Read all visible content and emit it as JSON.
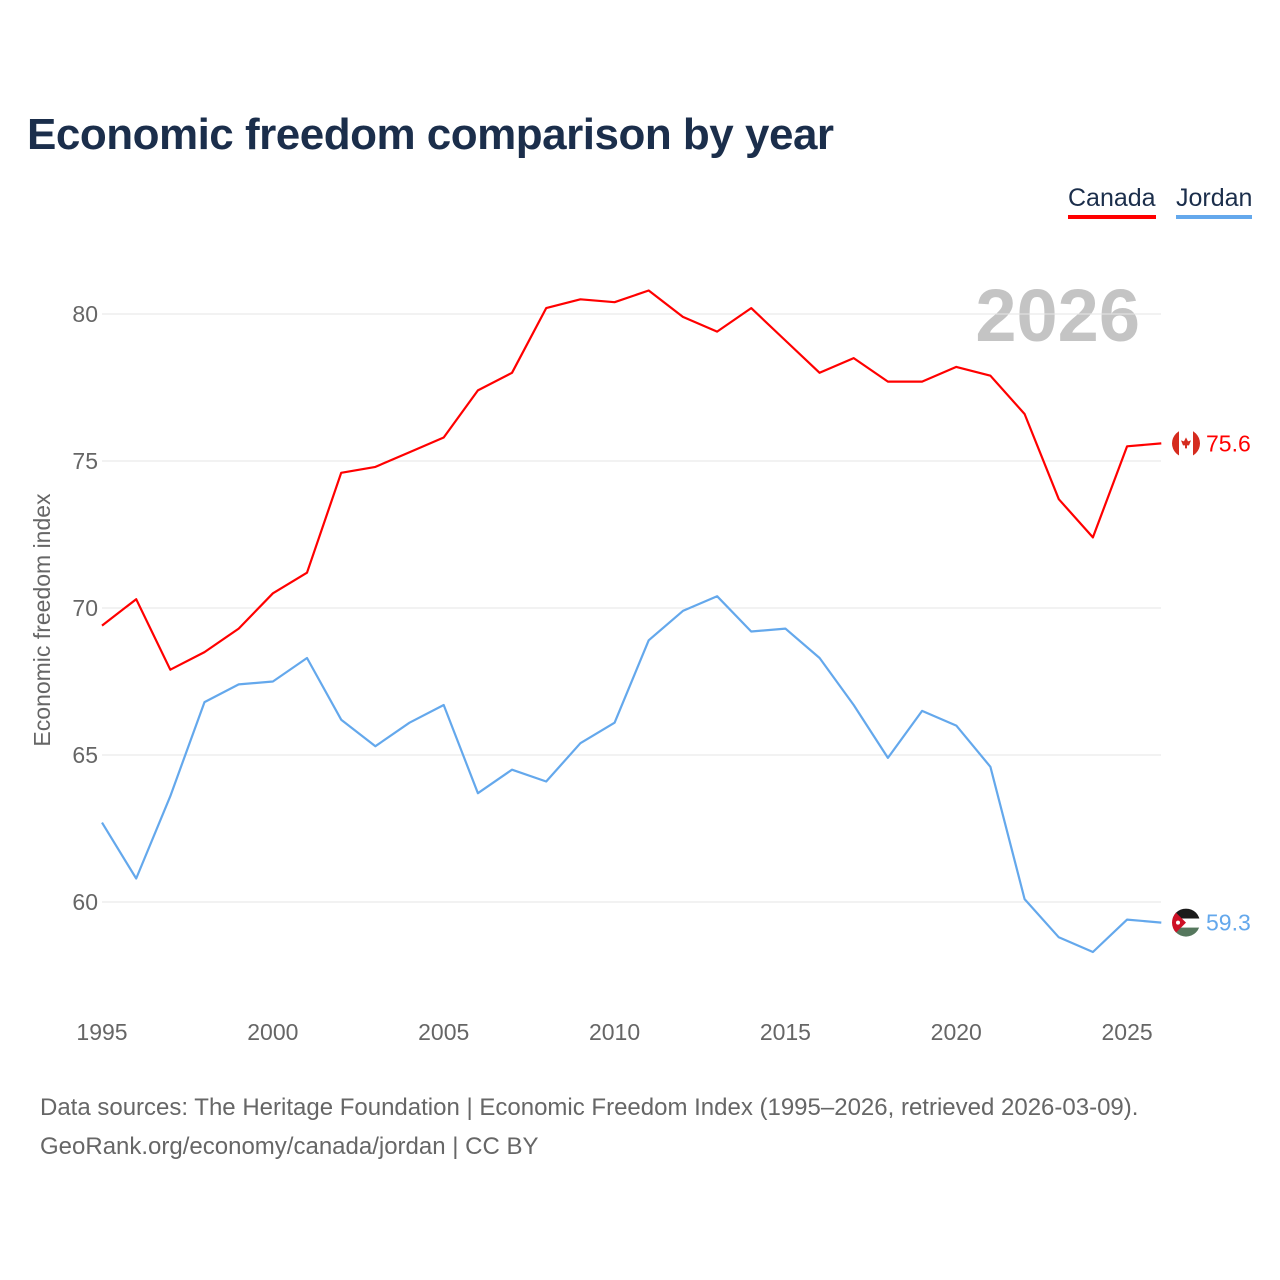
{
  "chart_data": {
    "type": "line",
    "title": "Economic freedom comparison by year",
    "ylabel": "Economic freedom index",
    "xlabel": "",
    "year_watermark": "2026",
    "x": [
      1995,
      1996,
      1997,
      1998,
      1999,
      2000,
      2001,
      2002,
      2003,
      2004,
      2005,
      2006,
      2007,
      2008,
      2009,
      2010,
      2011,
      2012,
      2013,
      2014,
      2015,
      2016,
      2017,
      2018,
      2019,
      2020,
      2021,
      2022,
      2023,
      2024,
      2025,
      2026
    ],
    "xlim": [
      1995,
      2026
    ],
    "ylim": [
      57,
      82.5
    ],
    "xticks": [
      "1995",
      "2000",
      "2005",
      "2010",
      "2015",
      "2020",
      "2025"
    ],
    "yticks": [
      "60",
      "65",
      "70",
      "75",
      "80"
    ],
    "grid": true,
    "legend_placement": "top-right",
    "series": [
      {
        "name": "Canada",
        "color": "#ff0000",
        "end_label": "75.6",
        "values": [
          69.4,
          70.3,
          67.9,
          68.5,
          69.3,
          70.5,
          71.2,
          74.6,
          74.8,
          75.3,
          75.8,
          77.4,
          78.0,
          80.2,
          80.5,
          80.4,
          80.8,
          79.9,
          79.4,
          80.2,
          79.1,
          78.0,
          78.5,
          77.7,
          77.7,
          78.2,
          77.9,
          76.6,
          73.7,
          72.4,
          75.5,
          75.6
        ]
      },
      {
        "name": "Jordan",
        "color": "#64a8ec",
        "end_label": "59.3",
        "values": [
          62.7,
          60.8,
          63.6,
          66.8,
          67.4,
          67.5,
          68.3,
          66.2,
          65.3,
          66.1,
          66.7,
          63.7,
          64.5,
          64.1,
          65.4,
          66.1,
          68.9,
          69.9,
          70.4,
          69.2,
          69.3,
          68.3,
          66.7,
          64.9,
          66.5,
          66.0,
          64.6,
          60.1,
          58.8,
          58.3,
          59.4,
          59.3
        ]
      }
    ]
  },
  "footer": {
    "line1": "Data sources: The Heritage Foundation | Economic Freedom Index (1995–2026, retrieved 2026-03-09).",
    "line2": "GeoRank.org/economy/canada/jordan | CC BY"
  }
}
